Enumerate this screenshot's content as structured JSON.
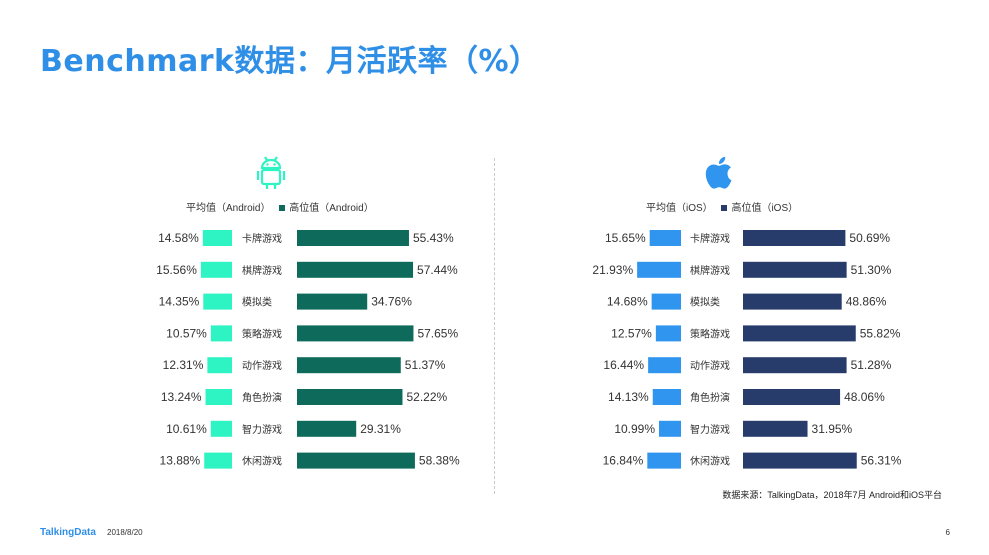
{
  "title": "Benchmark数据：月活跃率（%）",
  "source": "数据来源：TalkingData，2018年7月 Android和iOS平台",
  "footer": {
    "logo": "TalkingData",
    "date": "2018/8/20",
    "page": "6"
  },
  "icons": {
    "android": "android-icon",
    "ios": "apple-icon"
  },
  "colors": {
    "title": "#2f8fe6",
    "android_avg": "#2ef3c2",
    "android_high": "#0e6b5b",
    "ios_avg": "#2f95ef",
    "ios_high": "#283c6b"
  },
  "chart_data": [
    {
      "type": "bar",
      "platform": "Android",
      "categories": [
        "卡牌游戏",
        "棋牌游戏",
        "模拟类",
        "策略游戏",
        "动作游戏",
        "角色扮演",
        "智力游戏",
        "休闲游戏"
      ],
      "series": [
        {
          "name": "平均值（Android）",
          "values": [
            14.58,
            15.56,
            14.35,
            10.57,
            12.31,
            13.24,
            10.61,
            13.88
          ],
          "labels": [
            "14.58%",
            "15.56%",
            "14.35%",
            "10.57%",
            "12.31%",
            "13.24%",
            "10.61%",
            "13.88%"
          ]
        },
        {
          "name": "高位值（Android）",
          "values": [
            55.43,
            57.44,
            34.76,
            57.65,
            51.37,
            52.22,
            29.31,
            58.38
          ],
          "labels": [
            "55.43%",
            "57.44%",
            "34.76%",
            "57.65%",
            "51.37%",
            "52.22%",
            "29.31%",
            "58.38%"
          ]
        }
      ]
    },
    {
      "type": "bar",
      "platform": "iOS",
      "categories": [
        "卡牌游戏",
        "棋牌游戏",
        "模拟类",
        "策略游戏",
        "动作游戏",
        "角色扮演",
        "智力游戏",
        "休闲游戏"
      ],
      "series": [
        {
          "name": "平均值（iOS）",
          "values": [
            15.65,
            21.93,
            14.68,
            12.57,
            16.44,
            14.13,
            10.99,
            16.84
          ],
          "labels": [
            "15.65%",
            "21.93%",
            "14.68%",
            "12.57%",
            "16.44%",
            "14.13%",
            "10.99%",
            "16.84%"
          ]
        },
        {
          "name": "高位值（iOS）",
          "values": [
            50.69,
            51.3,
            48.86,
            55.82,
            51.28,
            48.06,
            31.95,
            56.31
          ],
          "labels": [
            "50.69%",
            "51.30%",
            "48.86%",
            "55.82%",
            "51.28%",
            "48.06%",
            "31.95%",
            "56.31%"
          ]
        }
      ]
    }
  ]
}
